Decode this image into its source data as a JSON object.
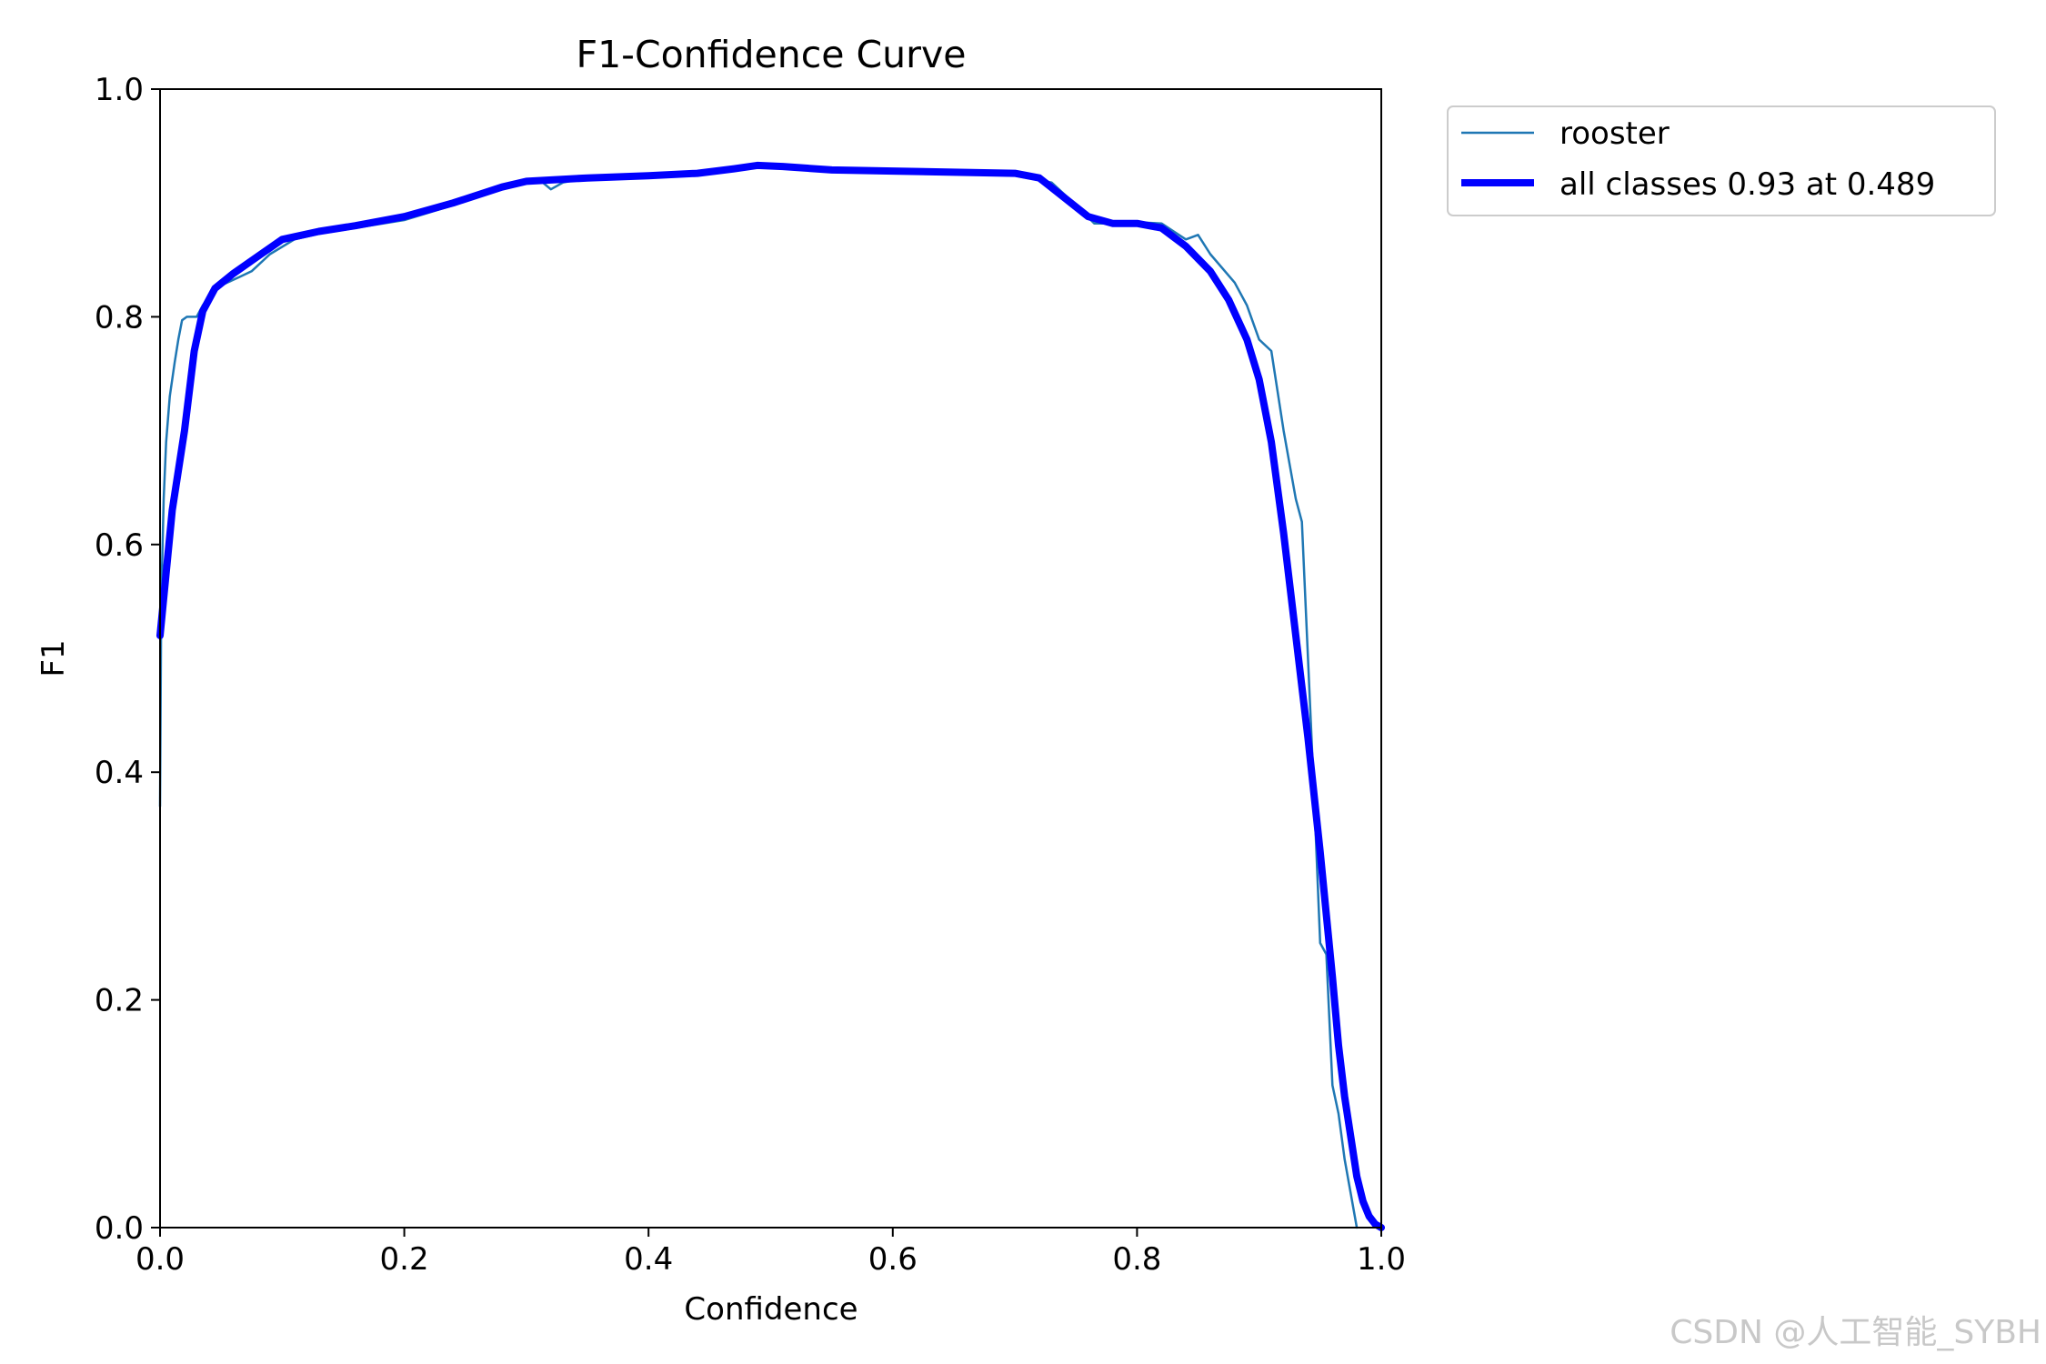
{
  "chart_data": {
    "type": "line",
    "title": "F1-Confidence Curve",
    "xlabel": "Confidence",
    "ylabel": "F1",
    "xlim": [
      0.0,
      1.0
    ],
    "ylim": [
      0.0,
      1.0
    ],
    "x_ticks": [
      "0.0",
      "0.2",
      "0.4",
      "0.6",
      "0.8",
      "1.0"
    ],
    "y_ticks": [
      "0.0",
      "0.2",
      "0.4",
      "0.6",
      "0.8",
      "1.0"
    ],
    "grid": false,
    "legend_position": "outside-top-right",
    "series": [
      {
        "name": "rooster",
        "color": "#1f77b4",
        "x": [
          0.0,
          0.001,
          0.003,
          0.005,
          0.008,
          0.012,
          0.015,
          0.018,
          0.022,
          0.03,
          0.035,
          0.045,
          0.055,
          0.065,
          0.075,
          0.09,
          0.11,
          0.13,
          0.16,
          0.2,
          0.24,
          0.28,
          0.3,
          0.31,
          0.32,
          0.33,
          0.35,
          0.4,
          0.44,
          0.48,
          0.5,
          0.55,
          0.6,
          0.65,
          0.7,
          0.73,
          0.75,
          0.765,
          0.78,
          0.8,
          0.82,
          0.84,
          0.85,
          0.86,
          0.88,
          0.89,
          0.9,
          0.91,
          0.92,
          0.925,
          0.93,
          0.935,
          0.94,
          0.945,
          0.95,
          0.955,
          0.96,
          0.965,
          0.97,
          0.975,
          0.98
        ],
        "y": [
          0.37,
          0.55,
          0.64,
          0.69,
          0.73,
          0.76,
          0.78,
          0.797,
          0.8,
          0.8,
          0.81,
          0.825,
          0.83,
          0.835,
          0.84,
          0.855,
          0.868,
          0.873,
          0.878,
          0.885,
          0.898,
          0.915,
          0.92,
          0.921,
          0.912,
          0.918,
          0.922,
          0.924,
          0.926,
          0.932,
          0.933,
          0.93,
          0.928,
          0.926,
          0.924,
          0.918,
          0.898,
          0.882,
          0.882,
          0.883,
          0.882,
          0.868,
          0.872,
          0.855,
          0.83,
          0.81,
          0.78,
          0.77,
          0.7,
          0.67,
          0.64,
          0.62,
          0.5,
          0.38,
          0.25,
          0.24,
          0.125,
          0.1,
          0.06,
          0.03,
          0.0
        ]
      },
      {
        "name": "all classes 0.93 at 0.489",
        "color": "#0000ff",
        "x": [
          0.0,
          0.01,
          0.02,
          0.028,
          0.035,
          0.045,
          0.06,
          0.08,
          0.1,
          0.13,
          0.16,
          0.2,
          0.24,
          0.28,
          0.3,
          0.35,
          0.4,
          0.44,
          0.47,
          0.489,
          0.51,
          0.55,
          0.6,
          0.65,
          0.7,
          0.72,
          0.74,
          0.76,
          0.78,
          0.8,
          0.82,
          0.84,
          0.86,
          0.875,
          0.89,
          0.9,
          0.91,
          0.92,
          0.93,
          0.94,
          0.95,
          0.96,
          0.965,
          0.97,
          0.975,
          0.98,
          0.985,
          0.99,
          0.995,
          1.0
        ],
        "y": [
          0.52,
          0.63,
          0.7,
          0.77,
          0.805,
          0.825,
          0.838,
          0.853,
          0.868,
          0.875,
          0.88,
          0.888,
          0.9,
          0.914,
          0.919,
          0.922,
          0.924,
          0.926,
          0.93,
          0.933,
          0.932,
          0.929,
          0.928,
          0.927,
          0.926,
          0.922,
          0.905,
          0.888,
          0.882,
          0.882,
          0.878,
          0.862,
          0.84,
          0.815,
          0.78,
          0.745,
          0.69,
          0.61,
          0.52,
          0.43,
          0.33,
          0.22,
          0.16,
          0.115,
          0.08,
          0.045,
          0.023,
          0.01,
          0.003,
          0.0
        ]
      }
    ]
  },
  "watermark": "CSDN @人工智能_SYBH"
}
